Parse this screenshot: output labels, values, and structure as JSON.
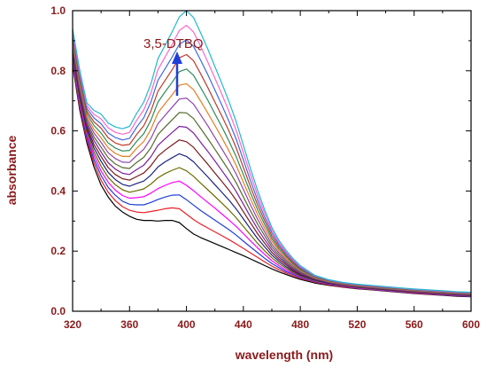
{
  "chart_data": {
    "type": "line",
    "xlabel": "wavelength (nm)",
    "ylabel": "absorbance",
    "xlim": [
      320,
      600
    ],
    "ylim": [
      0.0,
      1.0
    ],
    "xticks": [
      "320",
      "360",
      "400",
      "440",
      "480",
      "520",
      "560",
      "600"
    ],
    "yticks": [
      "0.0",
      "0.2",
      "0.4",
      "0.6",
      "0.8",
      "1.0"
    ],
    "annotation": {
      "text": "3,5-DTBQ",
      "arrow": "up",
      "arrow_color": "#1f3fd6"
    },
    "grid": false,
    "x": [
      320,
      325,
      330,
      335,
      340,
      345,
      350,
      355,
      360,
      365,
      370,
      375,
      380,
      385,
      390,
      395,
      400,
      405,
      410,
      415,
      420,
      425,
      430,
      435,
      440,
      445,
      450,
      455,
      460,
      465,
      470,
      475,
      480,
      490,
      500,
      510,
      520,
      530,
      540,
      550,
      560,
      570,
      580,
      590,
      600
    ],
    "series": [
      {
        "color": "#000000",
        "values": [
          0.82,
          0.67,
          0.56,
          0.48,
          0.42,
          0.38,
          0.35,
          0.33,
          0.316,
          0.306,
          0.302,
          0.302,
          0.3,
          0.302,
          0.302,
          0.295,
          0.275,
          0.257,
          0.245,
          0.235,
          0.225,
          0.215,
          0.205,
          0.195,
          0.185,
          0.174,
          0.163,
          0.152,
          0.141,
          0.131,
          0.122,
          0.114,
          0.106,
          0.094,
          0.086,
          0.08,
          0.075,
          0.071,
          0.067,
          0.063,
          0.059,
          0.056,
          0.053,
          0.05,
          0.048
        ]
      },
      {
        "color": "#e8202a",
        "values": [
          0.828,
          0.679,
          0.569,
          0.493,
          0.436,
          0.396,
          0.368,
          0.348,
          0.336,
          0.33,
          0.328,
          0.332,
          0.336,
          0.341,
          0.344,
          0.341,
          0.323,
          0.305,
          0.29,
          0.277,
          0.264,
          0.251,
          0.238,
          0.224,
          0.209,
          0.194,
          0.179,
          0.164,
          0.15,
          0.138,
          0.127,
          0.118,
          0.109,
          0.097,
          0.088,
          0.081,
          0.076,
          0.072,
          0.068,
          0.064,
          0.06,
          0.057,
          0.054,
          0.051,
          0.049
        ]
      },
      {
        "color": "#1f3fd6",
        "values": [
          0.836,
          0.688,
          0.578,
          0.505,
          0.452,
          0.412,
          0.386,
          0.366,
          0.356,
          0.354,
          0.354,
          0.362,
          0.372,
          0.38,
          0.386,
          0.387,
          0.371,
          0.353,
          0.335,
          0.319,
          0.303,
          0.287,
          0.271,
          0.253,
          0.233,
          0.214,
          0.195,
          0.176,
          0.159,
          0.145,
          0.132,
          0.122,
          0.112,
          0.099,
          0.09,
          0.083,
          0.077,
          0.073,
          0.069,
          0.065,
          0.061,
          0.058,
          0.055,
          0.052,
          0.05
        ]
      },
      {
        "color": "#ff00ff",
        "values": [
          0.844,
          0.697,
          0.587,
          0.518,
          0.467,
          0.429,
          0.403,
          0.385,
          0.376,
          0.378,
          0.381,
          0.393,
          0.408,
          0.419,
          0.428,
          0.433,
          0.419,
          0.401,
          0.381,
          0.362,
          0.343,
          0.323,
          0.303,
          0.282,
          0.258,
          0.234,
          0.211,
          0.189,
          0.168,
          0.152,
          0.137,
          0.126,
          0.115,
          0.101,
          0.091,
          0.084,
          0.078,
          0.074,
          0.07,
          0.066,
          0.062,
          0.059,
          0.056,
          0.053,
          0.051
        ]
      },
      {
        "color": "#6a6a00",
        "values": [
          0.852,
          0.706,
          0.596,
          0.53,
          0.483,
          0.445,
          0.421,
          0.404,
          0.396,
          0.401,
          0.407,
          0.423,
          0.444,
          0.458,
          0.469,
          0.478,
          0.467,
          0.449,
          0.426,
          0.404,
          0.382,
          0.359,
          0.336,
          0.311,
          0.282,
          0.254,
          0.226,
          0.201,
          0.178,
          0.159,
          0.143,
          0.129,
          0.117,
          0.102,
          0.092,
          0.085,
          0.079,
          0.075,
          0.071,
          0.067,
          0.063,
          0.06,
          0.057,
          0.054,
          0.052
        ]
      },
      {
        "color": "#1a237e",
        "values": [
          0.86,
          0.715,
          0.605,
          0.543,
          0.499,
          0.462,
          0.438,
          0.422,
          0.416,
          0.425,
          0.433,
          0.453,
          0.48,
          0.497,
          0.511,
          0.524,
          0.515,
          0.497,
          0.472,
          0.447,
          0.421,
          0.395,
          0.369,
          0.34,
          0.307,
          0.274,
          0.242,
          0.214,
          0.187,
          0.166,
          0.148,
          0.133,
          0.12,
          0.104,
          0.093,
          0.086,
          0.08,
          0.076,
          0.072,
          0.068,
          0.064,
          0.061,
          0.058,
          0.055,
          0.053
        ]
      },
      {
        "color": "#7a1a1a",
        "values": [
          0.868,
          0.724,
          0.614,
          0.555,
          0.515,
          0.478,
          0.455,
          0.441,
          0.436,
          0.448,
          0.46,
          0.484,
          0.516,
          0.536,
          0.553,
          0.57,
          0.564,
          0.545,
          0.517,
          0.489,
          0.46,
          0.431,
          0.402,
          0.369,
          0.331,
          0.294,
          0.258,
          0.226,
          0.196,
          0.173,
          0.154,
          0.137,
          0.123,
          0.106,
          0.095,
          0.087,
          0.081,
          0.077,
          0.073,
          0.069,
          0.065,
          0.062,
          0.059,
          0.056,
          0.054
        ]
      },
      {
        "color": "#7b1fa2",
        "values": [
          0.876,
          0.732,
          0.622,
          0.568,
          0.53,
          0.494,
          0.473,
          0.459,
          0.455,
          0.471,
          0.486,
          0.514,
          0.552,
          0.574,
          0.595,
          0.615,
          0.612,
          0.593,
          0.562,
          0.532,
          0.5,
          0.467,
          0.434,
          0.398,
          0.356,
          0.314,
          0.274,
          0.238,
          0.205,
          0.18,
          0.159,
          0.141,
          0.126,
          0.107,
          0.096,
          0.088,
          0.082,
          0.078,
          0.074,
          0.07,
          0.066,
          0.063,
          0.06,
          0.057,
          0.055
        ]
      },
      {
        "color": "#556b2f",
        "values": [
          0.884,
          0.741,
          0.631,
          0.58,
          0.546,
          0.511,
          0.49,
          0.478,
          0.475,
          0.495,
          0.512,
          0.544,
          0.588,
          0.613,
          0.637,
          0.661,
          0.66,
          0.641,
          0.608,
          0.574,
          0.539,
          0.503,
          0.467,
          0.427,
          0.38,
          0.334,
          0.29,
          0.251,
          0.214,
          0.187,
          0.164,
          0.145,
          0.129,
          0.109,
          0.097,
          0.089,
          0.083,
          0.079,
          0.075,
          0.071,
          0.067,
          0.064,
          0.061,
          0.058,
          0.056
        ]
      },
      {
        "color": "#8e44ad",
        "values": [
          0.892,
          0.75,
          0.64,
          0.593,
          0.562,
          0.527,
          0.508,
          0.496,
          0.495,
          0.518,
          0.539,
          0.575,
          0.624,
          0.652,
          0.679,
          0.706,
          0.709,
          0.689,
          0.653,
          0.617,
          0.578,
          0.539,
          0.5,
          0.456,
          0.405,
          0.354,
          0.306,
          0.263,
          0.223,
          0.194,
          0.17,
          0.15,
          0.132,
          0.111,
          0.098,
          0.09,
          0.084,
          0.08,
          0.076,
          0.072,
          0.068,
          0.065,
          0.062,
          0.059,
          0.057
        ]
      },
      {
        "color": "#e67e22",
        "values": [
          0.9,
          0.759,
          0.649,
          0.605,
          0.577,
          0.544,
          0.525,
          0.515,
          0.515,
          0.542,
          0.565,
          0.605,
          0.66,
          0.691,
          0.72,
          0.752,
          0.757,
          0.737,
          0.699,
          0.659,
          0.618,
          0.576,
          0.532,
          0.485,
          0.429,
          0.374,
          0.322,
          0.275,
          0.233,
          0.201,
          0.175,
          0.154,
          0.135,
          0.112,
          0.099,
          0.091,
          0.085,
          0.081,
          0.077,
          0.073,
          0.069,
          0.066,
          0.063,
          0.06,
          0.058
        ]
      },
      {
        "color": "#2e8b57",
        "values": [
          0.908,
          0.768,
          0.658,
          0.618,
          0.593,
          0.56,
          0.543,
          0.533,
          0.535,
          0.565,
          0.591,
          0.635,
          0.696,
          0.73,
          0.762,
          0.797,
          0.806,
          0.785,
          0.744,
          0.702,
          0.657,
          0.612,
          0.565,
          0.514,
          0.454,
          0.394,
          0.338,
          0.288,
          0.242,
          0.208,
          0.181,
          0.158,
          0.138,
          0.114,
          0.101,
          0.092,
          0.086,
          0.082,
          0.078,
          0.074,
          0.07,
          0.067,
          0.064,
          0.061,
          0.059
        ]
      },
      {
        "color": "#c0392b",
        "values": [
          0.916,
          0.776,
          0.666,
          0.63,
          0.609,
          0.577,
          0.56,
          0.552,
          0.555,
          0.588,
          0.617,
          0.666,
          0.732,
          0.768,
          0.804,
          0.843,
          0.854,
          0.833,
          0.79,
          0.744,
          0.696,
          0.648,
          0.598,
          0.543,
          0.478,
          0.414,
          0.354,
          0.3,
          0.251,
          0.215,
          0.186,
          0.162,
          0.142,
          0.116,
          0.102,
          0.093,
          0.087,
          0.083,
          0.079,
          0.075,
          0.071,
          0.068,
          0.065,
          0.062,
          0.06
        ]
      },
      {
        "color": "#4169e1",
        "values": [
          0.924,
          0.785,
          0.675,
          0.643,
          0.624,
          0.593,
          0.578,
          0.57,
          0.575,
          0.612,
          0.644,
          0.696,
          0.768,
          0.807,
          0.846,
          0.888,
          0.903,
          0.881,
          0.835,
          0.787,
          0.736,
          0.684,
          0.63,
          0.572,
          0.503,
          0.434,
          0.37,
          0.312,
          0.261,
          0.222,
          0.192,
          0.167,
          0.145,
          0.117,
          0.103,
          0.094,
          0.088,
          0.084,
          0.08,
          0.076,
          0.072,
          0.069,
          0.066,
          0.063,
          0.061
        ]
      },
      {
        "color": "#ff66cc",
        "values": [
          0.932,
          0.794,
          0.684,
          0.655,
          0.64,
          0.61,
          0.595,
          0.589,
          0.595,
          0.635,
          0.67,
          0.726,
          0.804,
          0.846,
          0.888,
          0.934,
          0.951,
          0.929,
          0.881,
          0.829,
          0.775,
          0.72,
          0.663,
          0.601,
          0.527,
          0.454,
          0.386,
          0.325,
          0.27,
          0.229,
          0.197,
          0.171,
          0.149,
          0.119,
          0.104,
          0.095,
          0.089,
          0.085,
          0.081,
          0.077,
          0.073,
          0.07,
          0.067,
          0.064,
          0.062
        ]
      },
      {
        "color": "#22b8cf",
        "values": [
          0.94,
          0.803,
          0.693,
          0.668,
          0.656,
          0.626,
          0.613,
          0.607,
          0.615,
          0.658,
          0.696,
          0.756,
          0.84,
          0.885,
          0.93,
          0.979,
          1.0,
          0.977,
          0.926,
          0.872,
          0.814,
          0.756,
          0.696,
          0.63,
          0.552,
          0.474,
          0.402,
          0.337,
          0.279,
          0.236,
          0.203,
          0.175,
          0.152,
          0.12,
          0.105,
          0.096,
          0.09,
          0.086,
          0.082,
          0.078,
          0.074,
          0.071,
          0.068,
          0.065,
          0.063
        ]
      }
    ]
  }
}
